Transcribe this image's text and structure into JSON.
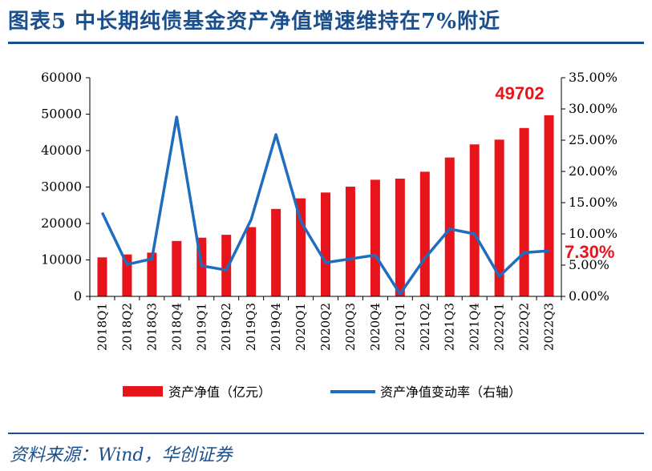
{
  "title": "图表5 中长期纯债基金资产净值增速维持在7%附近",
  "source": "资料来源：Wind，华创证券",
  "colors": {
    "bar": "#e8141c",
    "line": "#1f6dbf",
    "title": "#1a4f8b",
    "callout": "#e8141c"
  },
  "chart_data": {
    "type": "bar+line",
    "categories": [
      "2018Q1",
      "2018Q2",
      "2018Q3",
      "2018Q4",
      "2019Q1",
      "2019Q2",
      "2019Q3",
      "2019Q4",
      "2020Q1",
      "2020Q2",
      "2020Q3",
      "2020Q4",
      "2021Q1",
      "2021Q2",
      "2021Q3",
      "2021Q4",
      "2022Q1",
      "2022Q2",
      "2022Q3"
    ],
    "series": [
      {
        "name": "资产净值（亿元）",
        "type": "bar",
        "axis": "left",
        "values": [
          10700,
          11500,
          12000,
          15200,
          16100,
          16900,
          19000,
          24000,
          26900,
          28500,
          30100,
          32000,
          32300,
          34200,
          38100,
          41700,
          43000,
          46200,
          49702
        ]
      },
      {
        "name": "资产净值变动率（右轴）",
        "type": "line",
        "axis": "right",
        "values": [
          13.4,
          5.1,
          6.0,
          28.7,
          4.9,
          4.2,
          12.3,
          25.9,
          12.0,
          5.4,
          6.0,
          6.6,
          0.4,
          6.1,
          10.8,
          10.0,
          3.2,
          7.0,
          7.3
        ]
      }
    ],
    "y_left": {
      "min": 0,
      "max": 60000,
      "ticks": [
        "0",
        "10000",
        "20000",
        "30000",
        "40000",
        "50000",
        "60000"
      ]
    },
    "y_right": {
      "min": 0,
      "max": 35,
      "ticks": [
        "0.00%",
        "5.00%",
        "10.00%",
        "15.00%",
        "20.00%",
        "25.00%",
        "30.00%",
        "35.00%"
      ]
    },
    "annotations": {
      "last_bar": "49702",
      "last_rate": "7.30%"
    },
    "legend_position": "bottom"
  }
}
